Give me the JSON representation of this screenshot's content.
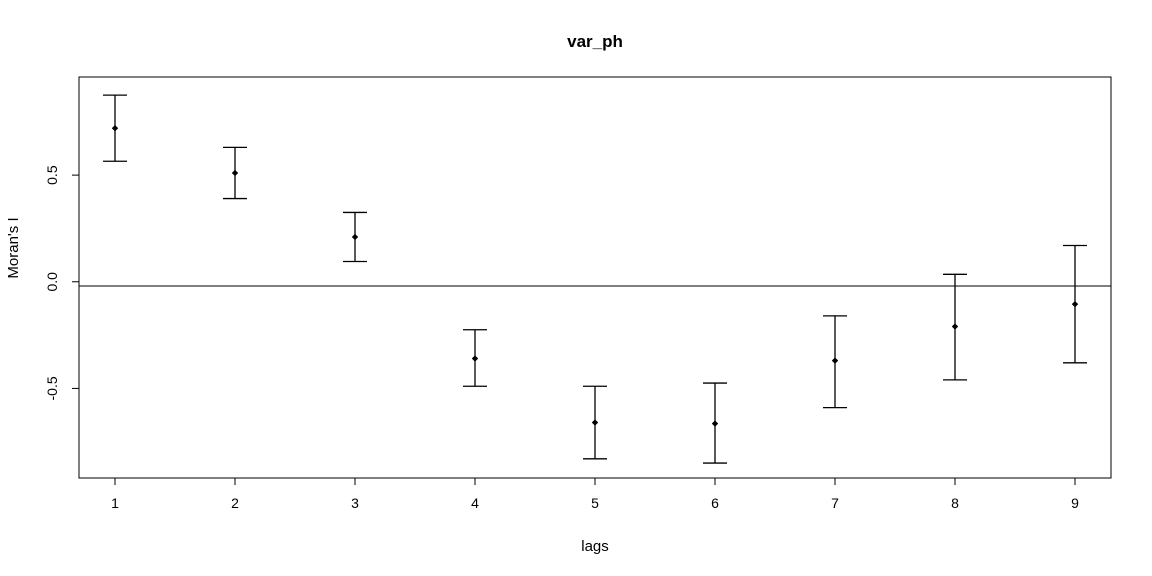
{
  "chart_data": {
    "type": "scatter",
    "title": "var_ph",
    "xlabel": "lags",
    "ylabel": "Moran's I",
    "x": [
      1,
      2,
      3,
      4,
      5,
      6,
      7,
      8,
      9
    ],
    "y": [
      0.72,
      0.51,
      0.21,
      -0.36,
      -0.66,
      -0.665,
      -0.37,
      -0.21,
      -0.105
    ],
    "err_lower": [
      0.565,
      0.39,
      0.095,
      -0.49,
      -0.83,
      -0.85,
      -0.59,
      -0.46,
      -0.38
    ],
    "err_upper": [
      0.875,
      0.63,
      0.325,
      -0.225,
      -0.49,
      -0.475,
      -0.16,
      0.035,
      0.17
    ],
    "reference_line": -0.02,
    "xlim": [
      0.7,
      9.3
    ],
    "ylim": [
      -0.92,
      0.96
    ],
    "xticks": [
      "1",
      "2",
      "3",
      "4",
      "5",
      "6",
      "7",
      "8",
      "9"
    ],
    "yticks": [
      {
        "value": 0.5,
        "label": "0.5"
      },
      {
        "value": 0.0,
        "label": "0.0"
      },
      {
        "value": -0.5,
        "label": "-0.5"
      }
    ],
    "grid": false,
    "color": "#000000"
  }
}
